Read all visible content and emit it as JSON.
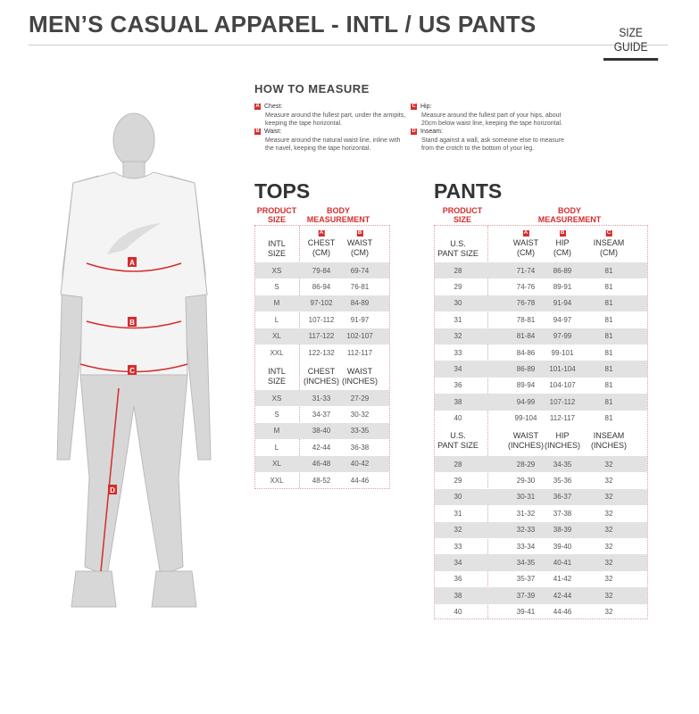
{
  "header": {
    "title": "MEN’S CASUAL APPAREL - INTL / US PANTS",
    "size_guide_tab": "SIZE GUIDE"
  },
  "how_to_measure": {
    "title": "HOW TO MEASURE",
    "items": [
      {
        "badge": "A",
        "label": "Chest:",
        "desc": "Measure around the fullest part, under the armpits, keeping the tape horizontal."
      },
      {
        "badge": "B",
        "label": "Waist:",
        "desc": "Measure around the natural waist line, inline with the navel, keeping the tape horizontal."
      },
      {
        "badge": "C",
        "label": "Hip:",
        "desc": "Measure around the fullest part of your hips, about 20cm below waist line, keeping the tape horizontal."
      },
      {
        "badge": "D",
        "label": "Inseam:",
        "desc": "Stand against a wall, ask someone else to measure from the crotch to the bottom of your leg."
      }
    ]
  },
  "figure": {
    "markers": [
      "A",
      "B",
      "C",
      "D"
    ],
    "accent": "#d62d2d"
  },
  "tops": {
    "title": "TOPS",
    "product_size": "PRODUCT SIZE",
    "body_measurement": "BODY MEASUREMENT",
    "cm": {
      "headers": [
        {
          "badge": "",
          "label": "INTL SIZE"
        },
        {
          "badge": "A",
          "label": "CHEST (CM)"
        },
        {
          "badge": "B",
          "label": "WAIST (CM)"
        }
      ],
      "rows": [
        [
          "XS",
          "79-84",
          "69-74"
        ],
        [
          "S",
          "86-94",
          "76-81"
        ],
        [
          "M",
          "97-102",
          "84-89"
        ],
        [
          "L",
          "107-112",
          "91-97"
        ],
        [
          "XL",
          "117-122",
          "102-107"
        ],
        [
          "XXL",
          "122-132",
          "112-117"
        ]
      ]
    },
    "inches": {
      "headers": [
        {
          "badge": "",
          "label": "INTL SIZE"
        },
        {
          "badge": "",
          "label": "CHEST (INCHES)"
        },
        {
          "badge": "",
          "label": "WAIST (INCHES)"
        }
      ],
      "rows": [
        [
          "XS",
          "31-33",
          "27-29"
        ],
        [
          "S",
          "34-37",
          "30-32"
        ],
        [
          "M",
          "38-40",
          "33-35"
        ],
        [
          "L",
          "42-44",
          "36-38"
        ],
        [
          "XL",
          "46-48",
          "40-42"
        ],
        [
          "XXL",
          "48-52",
          "44-46"
        ]
      ]
    }
  },
  "pants": {
    "title": "PANTS",
    "product_size": "PRODUCT SIZE",
    "body_measurement": "BODY MEASUREMENT",
    "cm": {
      "headers": [
        {
          "badge": "",
          "label": "U.S. PANT SIZE"
        },
        {
          "badge": "A",
          "label": "WAIST (CM)"
        },
        {
          "badge": "B",
          "label": "HIP (CM)"
        },
        {
          "badge": "C",
          "label": "INSEAM (CM)"
        }
      ],
      "rows": [
        [
          "28",
          "71-74",
          "86-89",
          "81"
        ],
        [
          "29",
          "74-76",
          "89-91",
          "81"
        ],
        [
          "30",
          "76-78",
          "91-94",
          "81"
        ],
        [
          "31",
          "78-81",
          "94-97",
          "81"
        ],
        [
          "32",
          "81-84",
          "97-99",
          "81"
        ],
        [
          "33",
          "84-86",
          "99-101",
          "81"
        ],
        [
          "34",
          "86-89",
          "101-104",
          "81"
        ],
        [
          "36",
          "89-94",
          "104-107",
          "81"
        ],
        [
          "38",
          "94-99",
          "107-112",
          "81"
        ],
        [
          "40",
          "99-104",
          "112-117",
          "81"
        ]
      ]
    },
    "inches": {
      "headers": [
        {
          "badge": "",
          "label": "U.S. PANT SIZE"
        },
        {
          "badge": "",
          "label": "WAIST (INCHES)"
        },
        {
          "badge": "",
          "label": "HIP (INCHES)"
        },
        {
          "badge": "",
          "label": "INSEAM (INCHES)"
        }
      ],
      "rows": [
        [
          "28",
          "28-29",
          "34-35",
          "32"
        ],
        [
          "29",
          "29-30",
          "35-36",
          "32"
        ],
        [
          "30",
          "30-31",
          "36-37",
          "32"
        ],
        [
          "31",
          "31-32",
          "37-38",
          "32"
        ],
        [
          "32",
          "32-33",
          "38-39",
          "32"
        ],
        [
          "33",
          "33-34",
          "39-40",
          "32"
        ],
        [
          "34",
          "34-35",
          "40-41",
          "32"
        ],
        [
          "36",
          "35-37",
          "41-42",
          "32"
        ],
        [
          "38",
          "37-39",
          "42-44",
          "32"
        ],
        [
          "40",
          "39-41",
          "44-46",
          "32"
        ]
      ]
    }
  }
}
